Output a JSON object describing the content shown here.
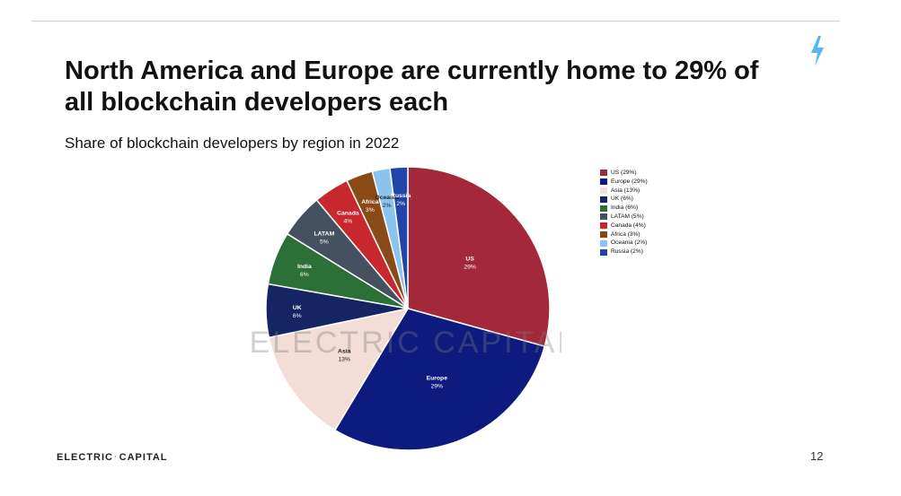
{
  "slide": {
    "title": "North America and Europe are currently home to 29% of all blockchain developers each",
    "subtitle": "Share of blockchain developers by region in 2022",
    "watermark": "ELECTRIC CAPITAL",
    "footer_logo_left": "ELECTRIC",
    "footer_logo_right": "CAPITAL",
    "page_number": "12",
    "accent_color": "#57b8f0"
  },
  "chart_data": {
    "type": "pie",
    "title": "Share of blockchain developers by region in 2022",
    "legend_position": "right",
    "slices": [
      {
        "name": "US",
        "value": 29,
        "pct_label": "29%",
        "legend": "US (29%)",
        "color": "#a3283a",
        "label_color": "#ffffff"
      },
      {
        "name": "Europe",
        "value": 29,
        "pct_label": "29%",
        "legend": "Europe (29%)",
        "color": "#0d1b7f",
        "label_color": "#ffffff"
      },
      {
        "name": "Asia",
        "value": 13,
        "pct_label": "13%",
        "legend": "Asia (13%)",
        "color": "#f2ddd7",
        "label_color": "#222222"
      },
      {
        "name": "UK",
        "value": 6,
        "pct_label": "6%",
        "legend": "UK (6%)",
        "color": "#152563",
        "label_color": "#ffffff"
      },
      {
        "name": "India",
        "value": 6,
        "pct_label": "6%",
        "legend": "India (6%)",
        "color": "#2d7037",
        "label_color": "#ffffff"
      },
      {
        "name": "LATAM",
        "value": 5,
        "pct_label": "5%",
        "legend": "LATAM (5%)",
        "color": "#45515f",
        "label_color": "#ffffff"
      },
      {
        "name": "Canada",
        "value": 4,
        "pct_label": "4%",
        "legend": "Canada (4%)",
        "color": "#c6282e",
        "label_color": "#ffffff"
      },
      {
        "name": "Africa",
        "value": 3,
        "pct_label": "3%",
        "legend": "Africa (3%)",
        "color": "#8a4a17",
        "label_color": "#ffffff"
      },
      {
        "name": "Oceania",
        "value": 2,
        "pct_label": "2%",
        "legend": "Oceania (2%)",
        "color": "#8cc4ef",
        "label_color": "#222222"
      },
      {
        "name": "Russia",
        "value": 2,
        "pct_label": "2%",
        "legend": "Russia (2%)",
        "color": "#1f45a8",
        "label_color": "#ffffff"
      }
    ]
  }
}
